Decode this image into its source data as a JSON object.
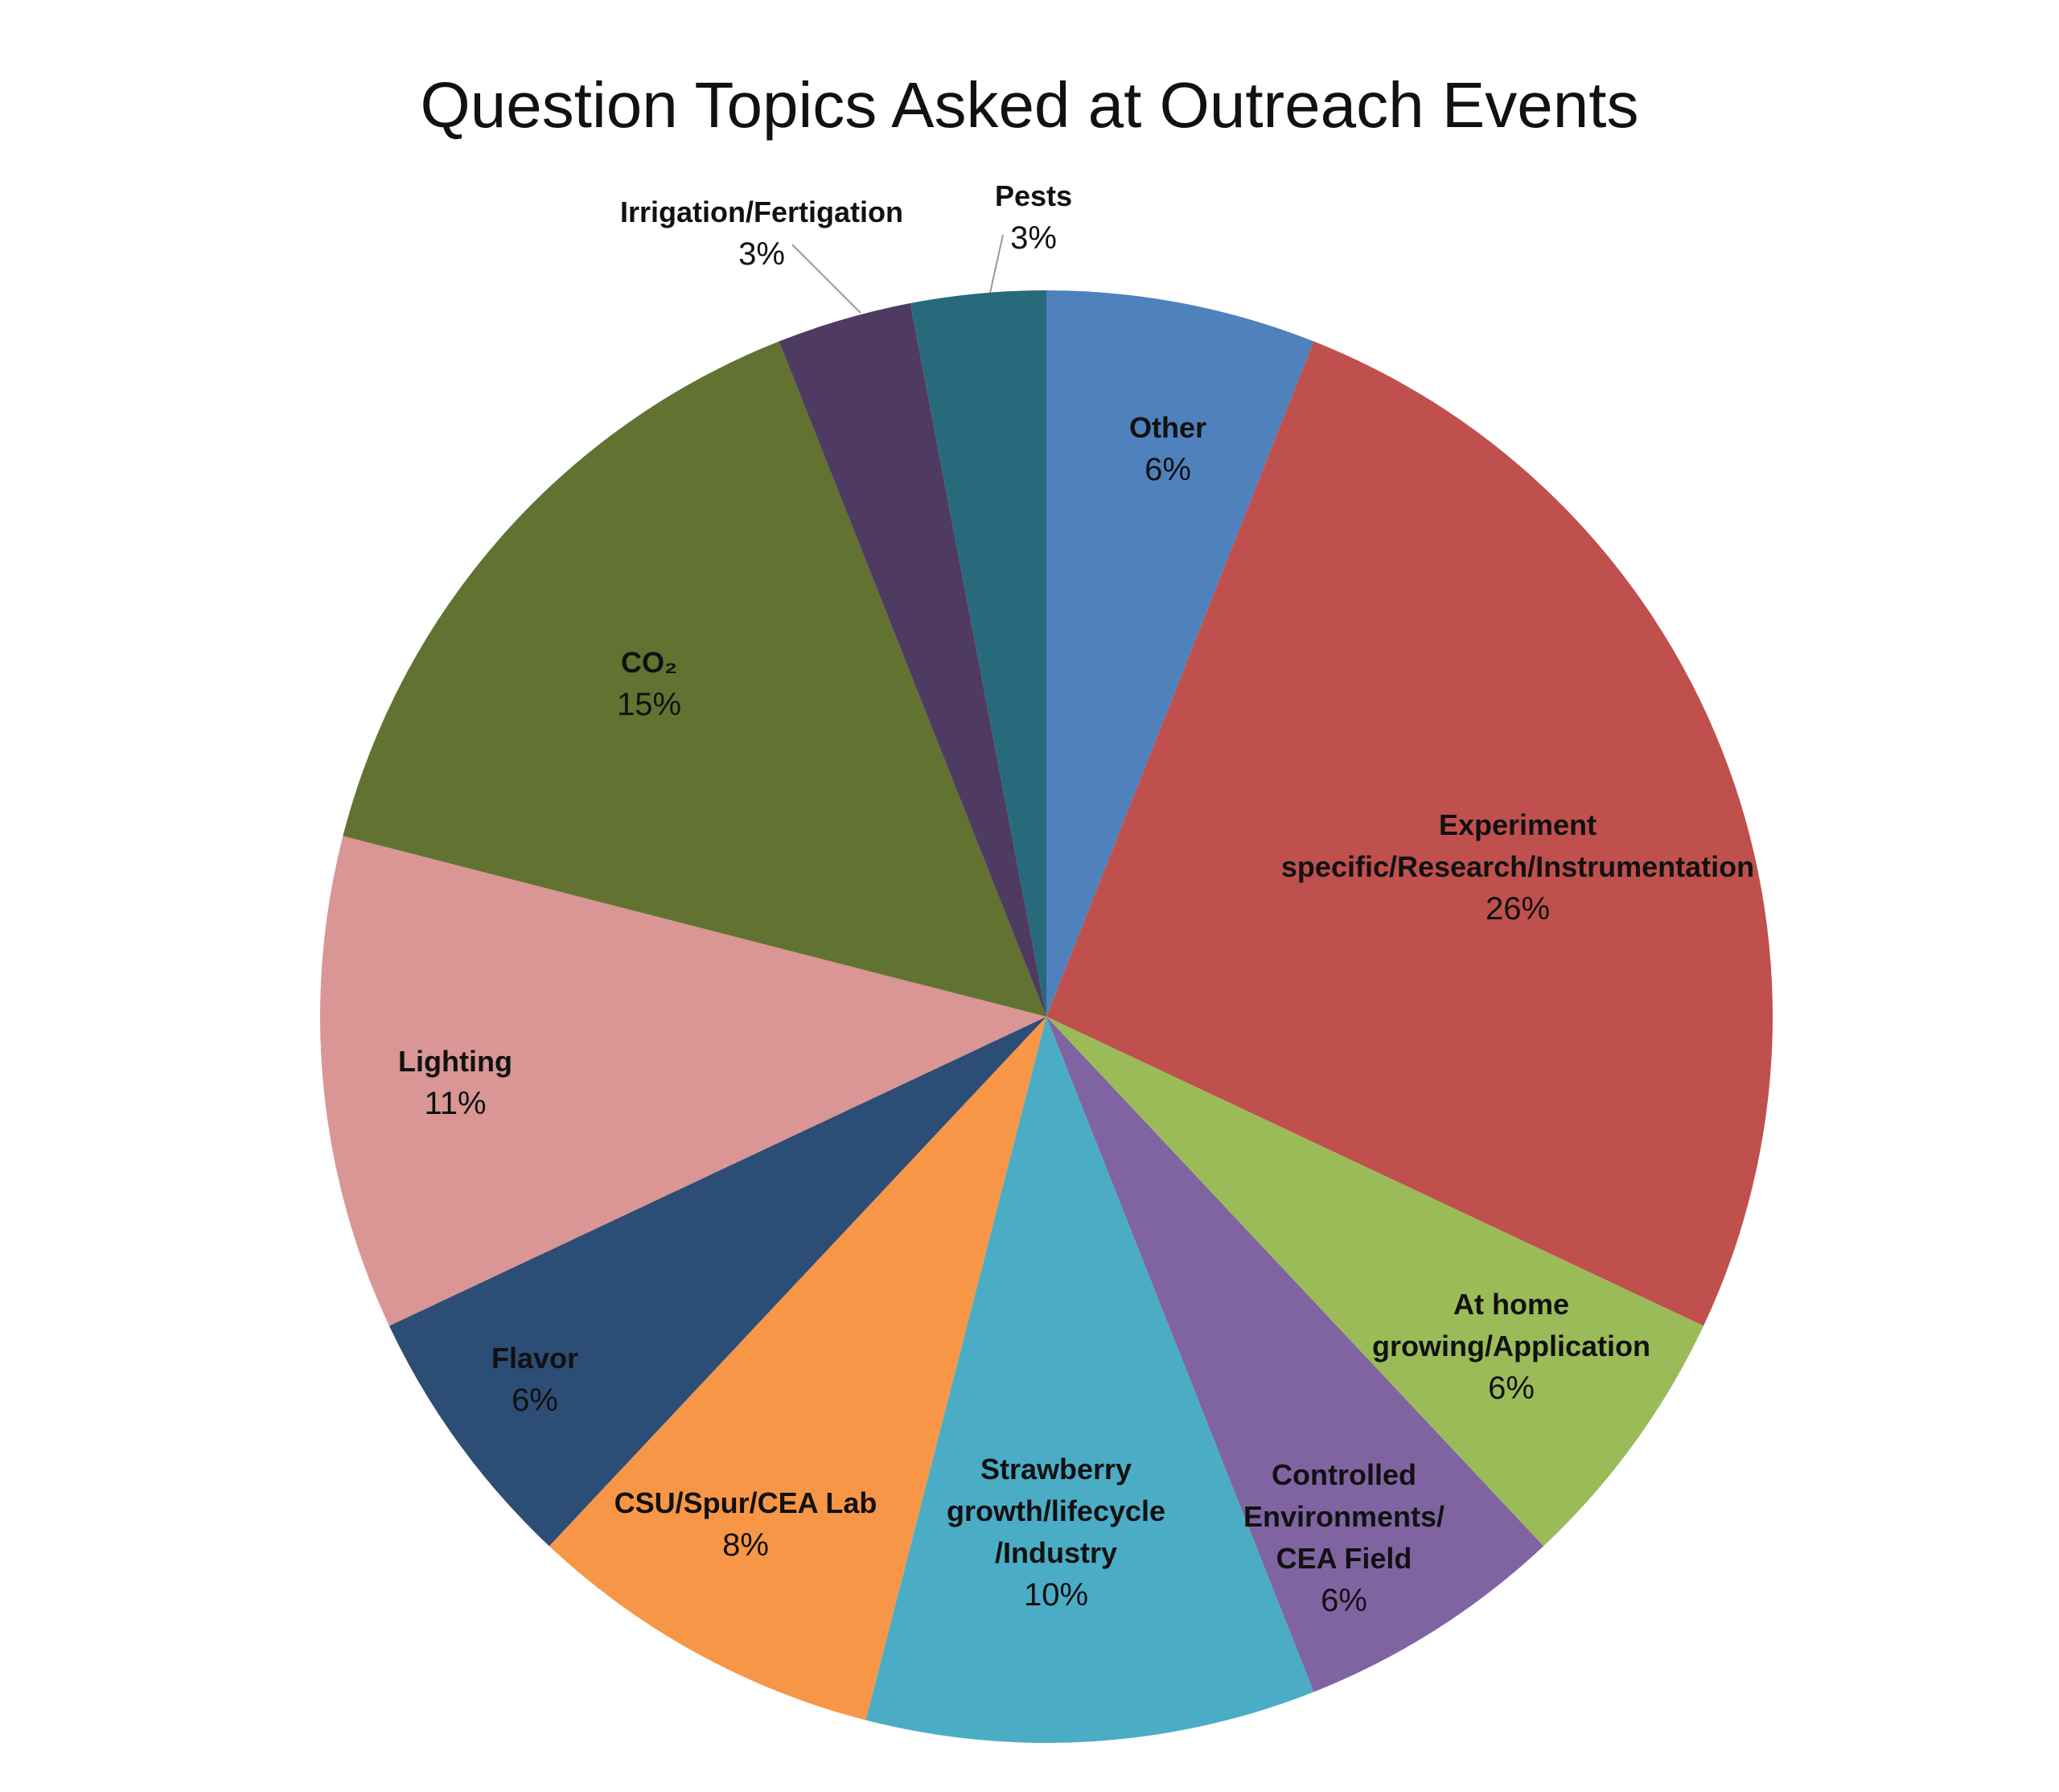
{
  "chart_data": {
    "type": "pie",
    "title": "Question Topics Asked at Outreach Events",
    "categories": [
      "Other",
      "Experiment specific/Research/Instrumentation",
      "At home growing/Application",
      "Controlled Environments/ CEA Field",
      "Strawberry growth/lifecycle /Industry",
      "CSU/Spur/CEA Lab",
      "Flavor",
      "Lighting",
      "CO₂",
      "Irrigation/Fertigation",
      "Pests"
    ],
    "values": [
      6,
      26,
      6,
      6,
      10,
      8,
      6,
      11,
      15,
      3,
      3
    ],
    "value_labels": [
      "6%",
      "26%",
      "6%",
      "6%",
      "10%",
      "8%",
      "6%",
      "11%",
      "15%",
      "3%",
      "3%"
    ],
    "colors": [
      "#4f81bd",
      "#c0504d",
      "#9bbb59",
      "#8064a2",
      "#4bacc6",
      "#f79646",
      "#2c4d75",
      "#d99694",
      "#627230",
      "#4f3b62",
      "#276a7c"
    ]
  }
}
